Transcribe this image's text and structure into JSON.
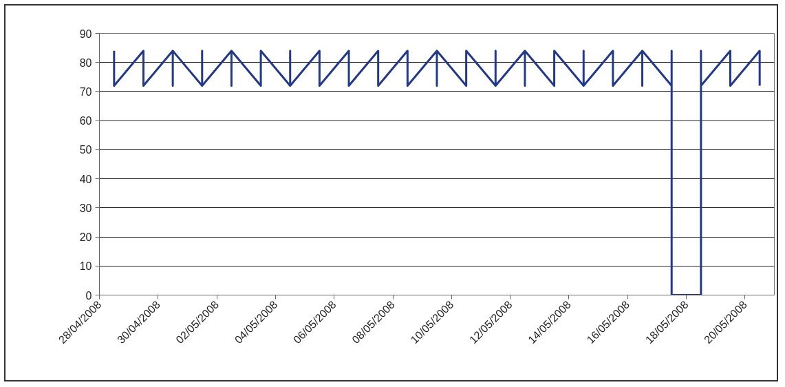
{
  "chart_data": {
    "type": "line",
    "color": "#22398a",
    "marker": "none",
    "line_style": "solid",
    "grid": "y",
    "x": [
      "2008-04-28T12:00",
      "2008-04-28T12:00",
      "2008-04-29T12:00",
      "2008-04-29T12:00",
      "2008-04-30T12:00",
      "2008-04-30T12:00",
      "2008-04-30T12:00",
      "2008-05-01T12:00",
      "2008-05-01T12:00",
      "2008-05-01T12:00",
      "2008-05-02T12:00",
      "2008-05-02T12:00",
      "2008-05-02T12:00",
      "2008-05-03T12:00",
      "2008-05-03T12:00",
      "2008-05-04T12:00",
      "2008-05-04T12:00",
      "2008-05-04T12:00",
      "2008-05-05T12:00",
      "2008-05-05T12:00",
      "2008-05-06T12:00",
      "2008-05-06T12:00",
      "2008-05-07T12:00",
      "2008-05-07T12:00",
      "2008-05-08T12:00",
      "2008-05-08T12:00",
      "2008-05-09T12:00",
      "2008-05-09T12:00",
      "2008-05-09T12:00",
      "2008-05-10T12:00",
      "2008-05-10T12:00",
      "2008-05-11T12:00",
      "2008-05-11T12:00",
      "2008-05-11T12:00",
      "2008-05-12T12:00",
      "2008-05-12T12:00",
      "2008-05-12T12:00",
      "2008-05-13T12:00",
      "2008-05-13T12:00",
      "2008-05-14T12:00",
      "2008-05-14T12:00",
      "2008-05-14T12:00",
      "2008-05-15T12:00",
      "2008-05-15T12:00",
      "2008-05-16T12:00",
      "2008-05-16T12:00",
      "2008-05-16T12:00",
      "2008-05-17T12:00",
      "2008-05-17T12:00",
      "2008-05-17T12:00",
      "2008-05-18T12:00",
      "2008-05-18T12:00",
      "2008-05-18T12:00",
      "2008-05-19T12:00",
      "2008-05-19T12:00",
      "2008-05-20T12:00",
      "2008-05-20T12:00"
    ],
    "values": [
      84,
      72,
      84,
      72,
      84,
      72,
      84,
      72,
      84,
      72,
      84,
      72,
      84,
      72,
      84,
      72,
      84,
      72,
      84,
      72,
      84,
      72,
      84,
      72,
      84,
      72,
      84,
      72,
      84,
      72,
      84,
      72,
      84,
      72,
      84,
      72,
      84,
      72,
      84,
      72,
      84,
      72,
      84,
      72,
      84,
      72,
      84,
      72,
      84,
      0,
      0,
      84,
      72,
      84,
      72,
      84,
      72
    ],
    "xlim": [
      "2008-04-28",
      "2008-05-21"
    ],
    "xticks": [
      {
        "value": "2008-04-28",
        "label": "28/04/2008"
      },
      {
        "value": "2008-04-30",
        "label": "30/04/2008"
      },
      {
        "value": "2008-05-02",
        "label": "02/05/2008"
      },
      {
        "value": "2008-05-04",
        "label": "04/05/2008"
      },
      {
        "value": "2008-05-06",
        "label": "06/05/2008"
      },
      {
        "value": "2008-05-08",
        "label": "08/05/2008"
      },
      {
        "value": "2008-05-10",
        "label": "10/05/2008"
      },
      {
        "value": "2008-05-12",
        "label": "12/05/2008"
      },
      {
        "value": "2008-05-14",
        "label": "14/05/2008"
      },
      {
        "value": "2008-05-16",
        "label": "16/05/2008"
      },
      {
        "value": "2008-05-18",
        "label": "18/05/2008"
      },
      {
        "value": "2008-05-20",
        "label": "20/05/2008"
      }
    ],
    "ylim": [
      0,
      90
    ],
    "yticks": [
      0,
      10,
      20,
      30,
      40,
      50,
      60,
      70,
      80,
      90
    ]
  }
}
